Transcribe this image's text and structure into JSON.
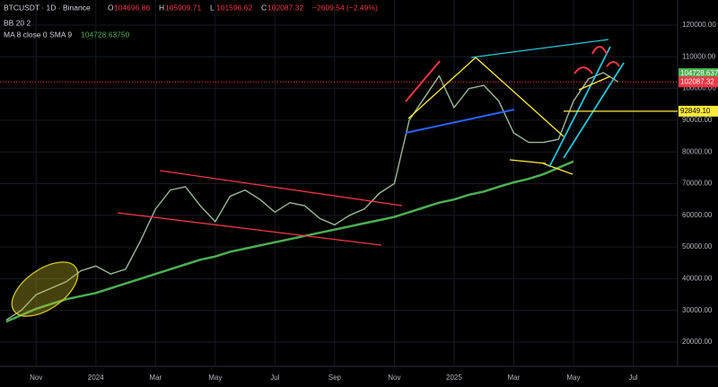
{
  "header": {
    "symbol": "BTCUSDT · 1D · Binance",
    "ohlc": [
      {
        "label": "O",
        "value": "104696.86"
      },
      {
        "label": "H",
        "value": "105909.71"
      },
      {
        "label": "L",
        "value": "101596.62"
      },
      {
        "label": "C",
        "value": "102087.32"
      }
    ],
    "change": "−2609.54 (−2.49%)",
    "indicator_1": "BB 20 2",
    "indicator_2": "MA 8 close 0 SMA 9",
    "indicator_2_value": "104728.63750"
  },
  "chart_data": {
    "type": "line",
    "categories": [
      null,
      null,
      "Nov",
      null,
      null,
      null,
      "2024",
      null,
      null,
      null,
      "Mar",
      null,
      null,
      null,
      "May",
      null,
      null,
      null,
      "Jul",
      null,
      null,
      null,
      "Sep",
      null,
      null,
      null,
      "Nov",
      null,
      null,
      null,
      "2025",
      null,
      null,
      null,
      "Mar",
      null,
      null,
      null,
      "May",
      null,
      null,
      null,
      "Jul"
    ],
    "series": [
      {
        "name": "BTCUSDT",
        "color": "#9bb89b",
        "values": [
          27000,
          30000,
          35000,
          37000,
          39000,
          42500,
          44000,
          41500,
          43000,
          52000,
          62000,
          68000,
          69000,
          63000,
          58000,
          66000,
          68000,
          65000,
          61000,
          64000,
          63000,
          59000,
          57000,
          60000,
          62000,
          67000,
          70000,
          90000,
          97000,
          104000,
          94000,
          100000,
          101000,
          96000,
          86000,
          83000,
          83000,
          84000,
          96000,
          103000,
          105000,
          102087.32,
          null
        ]
      },
      {
        "name": "MA 8 close 0 SMA 9",
        "color": "#4caf50",
        "values": [
          26500,
          28500,
          30500,
          32000,
          33500,
          34500,
          35500,
          37000,
          38500,
          40000,
          41500,
          43000,
          44500,
          46000,
          47000,
          48500,
          49500,
          50500,
          51500,
          52500,
          53500,
          54500,
          55500,
          56500,
          57500,
          58500,
          59500,
          61000,
          62500,
          64000,
          65000,
          66500,
          67500,
          69000,
          70400,
          71500,
          73000,
          75000,
          77000,
          null,
          null,
          null,
          null
        ]
      }
    ],
    "ylim": [
      14000,
      124000
    ],
    "yticks": [
      {
        "value": 20000,
        "label": "20000.00"
      },
      {
        "value": 30000,
        "label": "30000.00"
      },
      {
        "value": 40000,
        "label": "40000.00"
      },
      {
        "value": 50000,
        "label": "50000.00"
      },
      {
        "value": 60000,
        "label": "60000.00"
      },
      {
        "value": 70000,
        "label": "70000.00"
      },
      {
        "value": 80000,
        "label": "80000.00"
      },
      {
        "value": 90000,
        "label": "90000.00"
      },
      {
        "value": 100000,
        "label": "100000.00"
      },
      {
        "value": 110000,
        "label": "110000.00"
      },
      {
        "value": 120000,
        "label": "120000.00"
      }
    ],
    "price_labels": [
      {
        "value": 104728.6375,
        "label": "104728.637",
        "color": "#4caf50"
      },
      {
        "value": 102087.32,
        "label": "102087.32",
        "color": "#f23645"
      },
      {
        "value": 92849.1,
        "label": "92849.10",
        "color": "#ffeb3b"
      }
    ],
    "grid": true
  }
}
